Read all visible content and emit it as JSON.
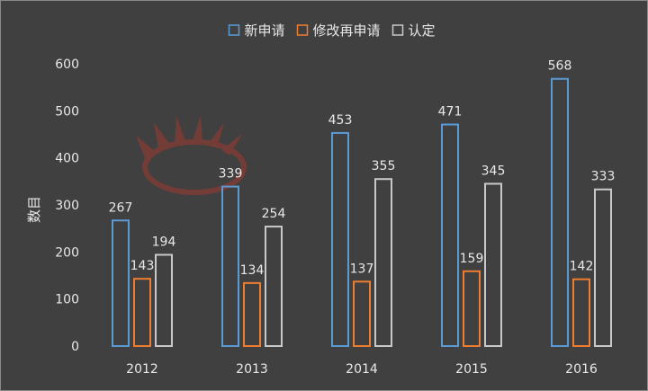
{
  "chart_data": {
    "type": "bar",
    "title": "",
    "xlabel": "",
    "ylabel": "数目",
    "categories": [
      "2012",
      "2013",
      "2014",
      "2015",
      "2016"
    ],
    "series": [
      {
        "name": "新申请",
        "color": "#5b9bd5",
        "values": [
          267,
          339,
          453,
          471,
          568
        ]
      },
      {
        "name": "修改再申请",
        "color": "#ed7d31",
        "values": [
          143,
          134,
          137,
          159,
          142
        ]
      },
      {
        "name": "认定",
        "color": "#c9c9c9",
        "values": [
          194,
          254,
          355,
          345,
          333
        ]
      }
    ],
    "ylim": [
      0,
      600
    ],
    "yticks": [
      0,
      100,
      200,
      300,
      400,
      500,
      600
    ],
    "legend_position": "top",
    "grid": false,
    "bar_style": "outlined",
    "background": "#404040"
  }
}
